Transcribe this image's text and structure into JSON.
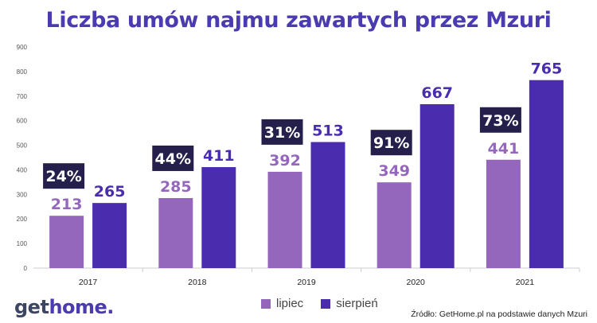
{
  "title": "Liczba umów najmu zawartych przez Mzuri",
  "logo": {
    "part1": "get",
    "part2": "home",
    "part3": "."
  },
  "source": "Źródło: GetHome.pl na podstawie danych Mzuri",
  "colors": {
    "lipiec": "#9467BD",
    "sierpien": "#4A2DAE",
    "badge": "#251F4C",
    "axis": "#cccccc",
    "title": "#4B3BB0"
  },
  "chart_data": {
    "type": "bar",
    "categories": [
      "2017",
      "2018",
      "2019",
      "2020",
      "2021"
    ],
    "series": [
      {
        "name": "lipiec",
        "values": [
          213,
          285,
          392,
          349,
          441
        ]
      },
      {
        "name": "sierpień",
        "values": [
          265,
          411,
          513,
          667,
          765
        ]
      }
    ],
    "growth_labels": [
      "24%",
      "44%",
      "31%",
      "91%",
      "73%"
    ],
    "yticks": [
      0,
      100,
      200,
      300,
      400,
      500,
      600,
      700,
      800,
      900
    ],
    "ylim": [
      0,
      900
    ],
    "legend_position": "bottom",
    "grid": false
  }
}
